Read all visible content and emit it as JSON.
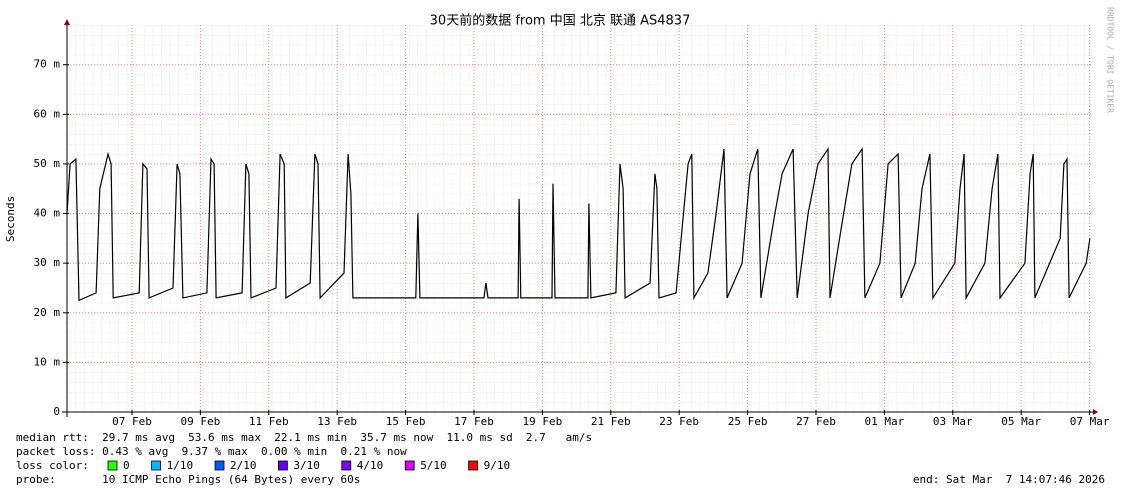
{
  "chart_data": {
    "type": "line",
    "title": "30天前的数据 from 中国 北京 联通 AS4837",
    "y_label": "Seconds",
    "side_label": "RRDTOOL / TOBI OETIKER",
    "xlim": [
      0,
      30
    ],
    "xticks": [
      {
        "value": 1.9,
        "label": "07 Feb"
      },
      {
        "value": 3.9,
        "label": "09 Feb"
      },
      {
        "value": 5.9,
        "label": "11 Feb"
      },
      {
        "value": 7.9,
        "label": "13 Feb"
      },
      {
        "value": 9.9,
        "label": "15 Feb"
      },
      {
        "value": 11.9,
        "label": "17 Feb"
      },
      {
        "value": 13.9,
        "label": "19 Feb"
      },
      {
        "value": 15.9,
        "label": "21 Feb"
      },
      {
        "value": 17.9,
        "label": "23 Feb"
      },
      {
        "value": 19.9,
        "label": "25 Feb"
      },
      {
        "value": 21.9,
        "label": "27 Feb"
      },
      {
        "value": 23.9,
        "label": "01 Mar"
      },
      {
        "value": 25.9,
        "label": "03 Mar"
      },
      {
        "value": 27.9,
        "label": "05 Mar"
      },
      {
        "value": 29.9,
        "label": "07 Mar"
      }
    ],
    "ylim": [
      0,
      78
    ],
    "yticks": [
      0,
      {
        "value": 10,
        "label": "10 m"
      },
      {
        "value": 20,
        "label": "20 m"
      },
      {
        "value": 30,
        "label": "30 m"
      },
      {
        "value": 40,
        "label": "40 m"
      },
      {
        "value": 50,
        "label": "50 m"
      },
      {
        "value": 60,
        "label": "60 m"
      },
      {
        "value": 70,
        "label": "70 m"
      }
    ],
    "grid": true,
    "series": [
      {
        "color": "#000000",
        "x": [
          0,
          0.09,
          0.26,
          0.35,
          0.85,
          0.96,
          1.2,
          1.29,
          1.35,
          2.11,
          2.22,
          2.34,
          2.4,
          3.1,
          3.22,
          3.3,
          3.39,
          4.09,
          4.21,
          4.3,
          4.36,
          5.12,
          5.23,
          5.32,
          5.38,
          6.11,
          6.23,
          6.35,
          6.4,
          7.11,
          7.25,
          7.34,
          7.4,
          8.1,
          8.22,
          8.3,
          8.36,
          10.2,
          10.26,
          10.32,
          12.19,
          12.25,
          12.31,
          13.19,
          13.22,
          13.27,
          14.18,
          14.21,
          14.27,
          15.23,
          15.26,
          15.32,
          16.05,
          16.17,
          16.26,
          16.32,
          17.05,
          17.19,
          17.25,
          17.31,
          17.81,
          18.16,
          18.27,
          18.33,
          18.74,
          18.98,
          19.21,
          19.3,
          19.74,
          19.97,
          20.2,
          20.29,
          20.7,
          20.91,
          21.23,
          21.35,
          21.67,
          21.96,
          22.25,
          22.31,
          22.66,
          22.95,
          23.25,
          23.33,
          23.77,
          24.01,
          24.3,
          24.39,
          24.8,
          25.0,
          25.23,
          25.32,
          25.96,
          26.11,
          26.23,
          26.29,
          26.84,
          27.05,
          27.22,
          27.28,
          28.01,
          28.16,
          28.25,
          28.3,
          29.04,
          29.15,
          29.24,
          29.3,
          29.8,
          29.91
        ],
        "values": [
          40,
          50,
          51,
          22.5,
          24,
          45,
          52,
          50,
          23,
          24,
          50,
          49,
          23,
          25,
          50,
          48,
          23,
          24,
          51,
          50,
          23,
          24,
          50,
          48,
          23,
          25,
          52,
          50,
          23,
          26,
          52,
          50,
          23,
          28,
          52,
          44,
          23,
          23,
          40,
          23,
          23,
          26,
          23,
          23,
          43,
          23,
          23,
          46,
          23,
          23,
          42,
          23,
          24,
          50,
          45,
          23,
          26,
          48,
          45,
          23,
          24,
          50,
          52,
          23,
          28,
          40,
          53,
          23,
          30,
          48,
          53,
          23,
          40,
          48,
          53,
          23,
          40,
          50,
          53,
          23,
          38,
          50,
          53,
          23,
          30,
          50,
          52,
          23,
          30,
          45,
          52,
          23,
          30,
          45,
          52,
          23,
          30,
          45,
          52,
          23,
          30,
          48,
          52,
          23,
          35,
          50,
          51,
          23,
          30,
          35
        ]
      }
    ],
    "legend": {
      "median_rtt": "median rtt:  29.7 ms avg  53.6 ms max  22.1 ms min  35.7 ms now  11.0 ms sd  2.7   am/s",
      "packet_loss": "packet loss: 0.43 % avg  9.37 % max  0.00 % min  0.21 % now",
      "loss_color_label": "loss color:",
      "loss_colors": [
        {
          "label": "0",
          "color": "#26ff00"
        },
        {
          "label": "1/10",
          "color": "#00b8ff"
        },
        {
          "label": "2/10",
          "color": "#0059ff"
        },
        {
          "label": "3/10",
          "color": "#5e00ff"
        },
        {
          "label": "4/10",
          "color": "#7e00ff"
        },
        {
          "label": "5/10",
          "color": "#dd00ff"
        },
        {
          "label": "9/10",
          "color": "#ff0000"
        }
      ],
      "probe": "probe:       10 ICMP Echo Pings (64 Bytes) every 60s",
      "end": "end: Sat Mar  7 14:07:46 2026"
    }
  }
}
